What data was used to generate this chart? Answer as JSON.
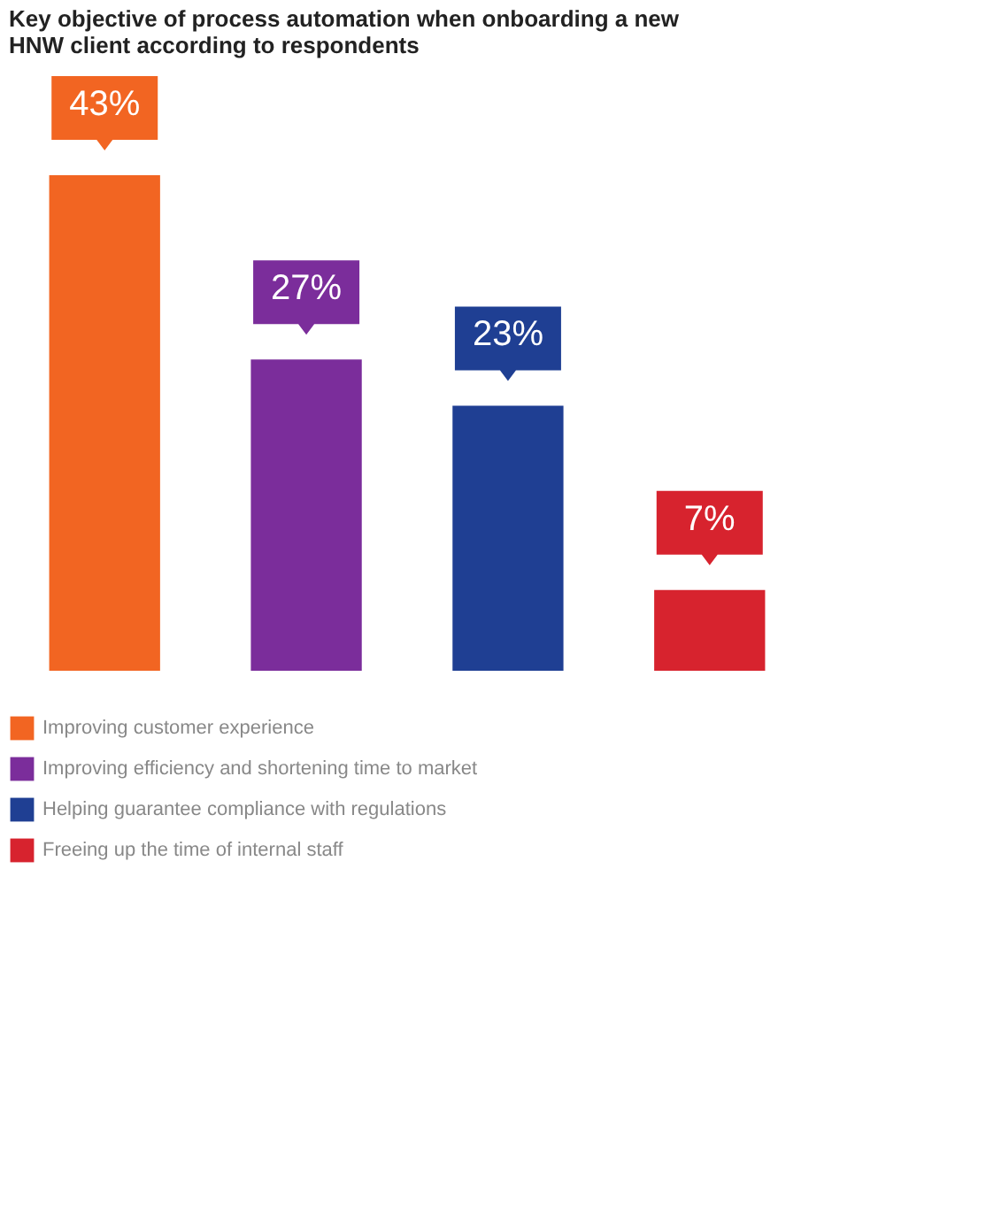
{
  "chart_data": {
    "type": "bar",
    "title": "Key objective of process automation when onboarding a new HNW client according to respondents",
    "categories": [
      null,
      null,
      null,
      null
    ],
    "stacked": true,
    "series": [
      {
        "name": "Improving customer experience",
        "color": "#f26522",
        "values": [
          43,
          null,
          null,
          null
        ],
        "value_labels": [
          "43%",
          null,
          null,
          null
        ]
      },
      {
        "name": "Improving efficiency and shortening time to market",
        "color": "#7b2d9b",
        "values": [
          null,
          27,
          null,
          null
        ],
        "value_labels": [
          null,
          "27%",
          null,
          null
        ]
      },
      {
        "name": "Helping guarantee compliance with regulations",
        "color": "#1f3f93",
        "values": [
          null,
          null,
          23,
          null
        ],
        "value_labels": [
          null,
          null,
          "23%",
          null
        ]
      },
      {
        "name": "Freeing up the time of internal staff",
        "color": "#d7232e",
        "values": [
          null,
          null,
          null,
          7
        ],
        "value_labels": [
          null,
          null,
          null,
          "7%"
        ]
      }
    ],
    "legend": "bottom"
  }
}
